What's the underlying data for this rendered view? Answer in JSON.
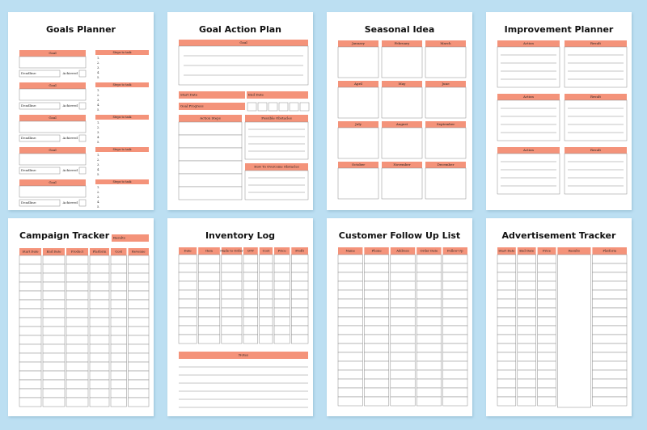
{
  "pages": [
    {
      "title": "Goals Planner",
      "blocks": [
        {
          "goal": "Goal",
          "deadline": "Deadline:",
          "achieved": "Achieved",
          "steps": "Steps to task",
          "numbers": [
            "1.",
            "2.",
            "3.",
            "4.",
            "5."
          ]
        },
        {
          "goal": "Goal",
          "deadline": "Deadline:",
          "achieved": "Achieved",
          "steps": "Steps to task",
          "numbers": [
            "1.",
            "2.",
            "3.",
            "4.",
            "5."
          ]
        },
        {
          "goal": "Goal",
          "deadline": "Deadline:",
          "achieved": "Achieved",
          "steps": "Steps to task",
          "numbers": [
            "1.",
            "2.",
            "3.",
            "4.",
            "5."
          ]
        },
        {
          "goal": "Goal",
          "deadline": "Deadline:",
          "achieved": "Achieved",
          "steps": "Steps to task",
          "numbers": [
            "1.",
            "2.",
            "3.",
            "4.",
            "5."
          ]
        },
        {
          "goal": "Goal",
          "deadline": "Deadline:",
          "achieved": "Achieved",
          "steps": "Steps to task",
          "numbers": [
            "1.",
            "2.",
            "3.",
            "4.",
            "5."
          ]
        }
      ]
    },
    {
      "title": "Goal Action Plan",
      "goal": "Goal",
      "start_date": "Start Date",
      "end_date": "End Date",
      "goal_progress": "Goal Progress",
      "action_steps": "Action Steps",
      "possible_obstacles": "Possible Obstacles",
      "overcome": "How To Overcome Obstacles"
    },
    {
      "title": "Seasonal Idea",
      "months": [
        "January",
        "February",
        "March",
        "April",
        "May",
        "June",
        "July",
        "August",
        "September",
        "October",
        "November",
        "December"
      ]
    },
    {
      "title": "Improvement Planner",
      "sections": [
        {
          "action": "Action",
          "result": "Result"
        },
        {
          "action": "Action",
          "result": "Result"
        },
        {
          "action": "Action",
          "result": "Result"
        }
      ]
    },
    {
      "title": "Campaign Tracker",
      "results": "Results",
      "columns": [
        "Start Date",
        "End Date",
        "Product",
        "Platform",
        "Cost",
        "Revenue"
      ]
    },
    {
      "title": "Inventory Log",
      "columns": [
        "Date",
        "Item",
        "Made to Order",
        "QTY",
        "Cost",
        "Price",
        "Profit"
      ],
      "notes": "Notes"
    },
    {
      "title": "Customer Follow Up List",
      "columns": [
        "Name",
        "Phone",
        "Address",
        "Order Date",
        "Follow Up"
      ]
    },
    {
      "title": "Advertisement Tracker",
      "columns": [
        "Start Date",
        "End Date",
        "Price",
        "Results",
        "Platform"
      ]
    }
  ]
}
